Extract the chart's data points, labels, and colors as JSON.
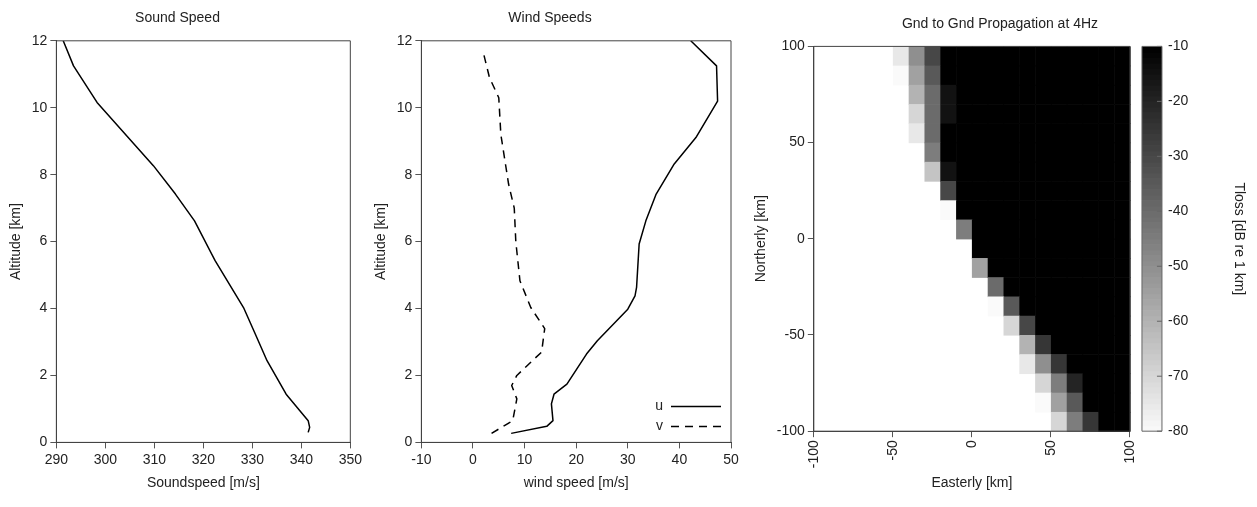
{
  "chart_data": [
    {
      "type": "line",
      "title": "Sound Speed",
      "xlabel": "Soundspeed [m/s]",
      "ylabel": "Altitude [km]",
      "xlim": [
        290,
        350
      ],
      "xticks": [
        290,
        300,
        310,
        320,
        330,
        340,
        350
      ],
      "ylim": [
        0,
        12
      ],
      "yticks": [
        0,
        2,
        4,
        6,
        8,
        10,
        12
      ],
      "marker": "none",
      "line_style": "solid",
      "series": [
        {
          "color": "#000000",
          "x": [
            341.4,
            341.7,
            341.4,
            336.9,
            333,
            330.6,
            328.2,
            322.4,
            318.2,
            314.3,
            309.8,
            298.3,
            293.5,
            291.4
          ],
          "values": [
            0.3,
            0.45,
            0.65,
            1.44,
            2.44,
            3.24,
            4.03,
            5.43,
            6.62,
            7.42,
            8.27,
            10.16,
            11.25,
            12
          ]
        }
      ]
    },
    {
      "type": "line",
      "title": "Wind Speeds",
      "xlabel": "wind speed [m/s]",
      "ylabel": "Altitude [km]",
      "xlim": [
        -10,
        50
      ],
      "xticks": [
        -10,
        0,
        10,
        20,
        30,
        40,
        50
      ],
      "ylim": [
        0,
        12
      ],
      "yticks": [
        0,
        2,
        4,
        6,
        8,
        10,
        12
      ],
      "marker": "none",
      "legend": "bottom right",
      "series": [
        {
          "name": "u",
          "color": "#000000",
          "line_style": "solid",
          "x": [
            7.4,
            14.3,
            15.5,
            15.2,
            15.7,
            18.2,
            22,
            24.1,
            30,
            31.4,
            31.7,
            32.2,
            33.5,
            35.5,
            39,
            43.2,
            47.4,
            47.2,
            42.2
          ],
          "values": [
            0.27,
            0.48,
            0.65,
            1.15,
            1.44,
            1.74,
            2.64,
            3.04,
            3.98,
            4.38,
            4.63,
            5.93,
            6.62,
            7.42,
            8.32,
            9.11,
            10.2,
            11.25,
            12
          ]
        },
        {
          "name": "v",
          "color": "#000000",
          "line_style": "dashed",
          "x": [
            3.6,
            7.7,
            8.5,
            7.5,
            8.5,
            13.3,
            13.9,
            11.2,
            9.1,
            8.3,
            8,
            6.9,
            5.4,
            5,
            3.2,
            2
          ],
          "values": [
            0.27,
            0.65,
            1.3,
            1.7,
            2,
            2.7,
            3.4,
            4.03,
            4.83,
            6,
            7,
            7.72,
            9.2,
            10.3,
            10.9,
            11.65
          ]
        }
      ]
    },
    {
      "type": "heatmap",
      "title": "Gnd to Gnd Propagation at 4Hz",
      "xlabel": "Easterly [km]",
      "ylabel": "Northerly [km]",
      "clabel": "Tloss [dB re 1 km]",
      "xlim": [
        -100,
        100
      ],
      "xticks": [
        -100,
        -50,
        0,
        50,
        100
      ],
      "ylim": [
        -100,
        100
      ],
      "yticks": [
        -100,
        -50,
        0,
        50,
        100
      ],
      "clim": [
        -80,
        -10
      ],
      "cticks": [
        -80,
        -70,
        -60,
        -50,
        -40,
        -30,
        -20,
        -10
      ],
      "cells": [
        [
          null,
          null,
          null,
          null,
          null,
          -75,
          -50,
          -30,
          -10,
          -10,
          -10,
          -10,
          -10,
          -10,
          -10,
          -10,
          -10,
          -10,
          -10,
          -10
        ],
        [
          null,
          null,
          null,
          null,
          null,
          -80,
          -55,
          -35,
          -10,
          -10,
          -10,
          -10,
          -10,
          -10,
          -10,
          -10,
          -10,
          -10,
          -10,
          -10
        ],
        [
          null,
          null,
          null,
          null,
          null,
          null,
          -60,
          -40,
          -15,
          -10,
          -10,
          -10,
          -10,
          -10,
          -10,
          -10,
          -10,
          -10,
          -10,
          -10
        ],
        [
          null,
          null,
          null,
          null,
          null,
          null,
          -70,
          -40,
          -15,
          -10,
          -10,
          -10,
          -10,
          -10,
          -10,
          -10,
          -10,
          -10,
          -10,
          -10
        ],
        [
          null,
          null,
          null,
          null,
          null,
          null,
          -75,
          -40,
          -10,
          -10,
          -10,
          -10,
          -10,
          -10,
          -10,
          -10,
          -10,
          -10,
          -10,
          -10
        ],
        [
          null,
          null,
          null,
          null,
          null,
          null,
          null,
          -45,
          -10,
          -10,
          -10,
          -10,
          -10,
          -10,
          -10,
          -10,
          -10,
          -10,
          -10,
          -10
        ],
        [
          null,
          null,
          null,
          null,
          null,
          null,
          null,
          -65,
          -15,
          -10,
          -10,
          -10,
          -10,
          -10,
          -10,
          -10,
          -10,
          -10,
          -10,
          -10
        ],
        [
          null,
          null,
          null,
          null,
          null,
          null,
          null,
          null,
          -30,
          -10,
          -10,
          -10,
          -10,
          -10,
          -10,
          -10,
          -10,
          -10,
          -10,
          -10
        ],
        [
          null,
          null,
          null,
          null,
          null,
          null,
          null,
          null,
          -80,
          -10,
          -10,
          -10,
          -10,
          -10,
          -10,
          -10,
          -10,
          -10,
          -10,
          -10
        ],
        [
          null,
          null,
          null,
          null,
          null,
          null,
          null,
          null,
          null,
          -45,
          -10,
          -10,
          -10,
          -10,
          -10,
          -10,
          -10,
          -10,
          -10,
          -10
        ],
        [
          null,
          null,
          null,
          null,
          null,
          null,
          null,
          null,
          null,
          null,
          -10,
          -10,
          -10,
          -10,
          -10,
          -10,
          -10,
          -10,
          -10,
          -10
        ],
        [
          null,
          null,
          null,
          null,
          null,
          null,
          null,
          null,
          null,
          null,
          -55,
          -10,
          -10,
          -10,
          -10,
          -10,
          -10,
          -10,
          -10,
          -10
        ],
        [
          null,
          null,
          null,
          null,
          null,
          null,
          null,
          null,
          null,
          null,
          null,
          -40,
          -10,
          -10,
          -10,
          -10,
          -10,
          -10,
          -10,
          -10
        ],
        [
          null,
          null,
          null,
          null,
          null,
          null,
          null,
          null,
          null,
          null,
          null,
          -80,
          -35,
          -10,
          -10,
          -10,
          -10,
          -10,
          -10,
          -10
        ],
        [
          null,
          null,
          null,
          null,
          null,
          null,
          null,
          null,
          null,
          null,
          null,
          null,
          -70,
          -30,
          -10,
          -10,
          -10,
          -10,
          -10,
          -10
        ],
        [
          null,
          null,
          null,
          null,
          null,
          null,
          null,
          null,
          null,
          null,
          null,
          null,
          null,
          -60,
          -25,
          -10,
          -10,
          -10,
          -10,
          -10
        ],
        [
          null,
          null,
          null,
          null,
          null,
          null,
          null,
          null,
          null,
          null,
          null,
          null,
          null,
          -75,
          -50,
          -25,
          -10,
          -10,
          -10,
          -10
        ],
        [
          null,
          null,
          null,
          null,
          null,
          null,
          null,
          null,
          null,
          null,
          null,
          null,
          null,
          null,
          -70,
          -45,
          -20,
          -10,
          -10,
          -10
        ],
        [
          null,
          null,
          null,
          null,
          null,
          null,
          null,
          null,
          null,
          null,
          null,
          null,
          null,
          null,
          -80,
          -55,
          -35,
          -10,
          -10,
          -10
        ],
        [
          null,
          null,
          null,
          null,
          null,
          null,
          null,
          null,
          null,
          null,
          null,
          null,
          null,
          null,
          null,
          -70,
          -45,
          -25,
          -10,
          -10
        ]
      ]
    }
  ]
}
